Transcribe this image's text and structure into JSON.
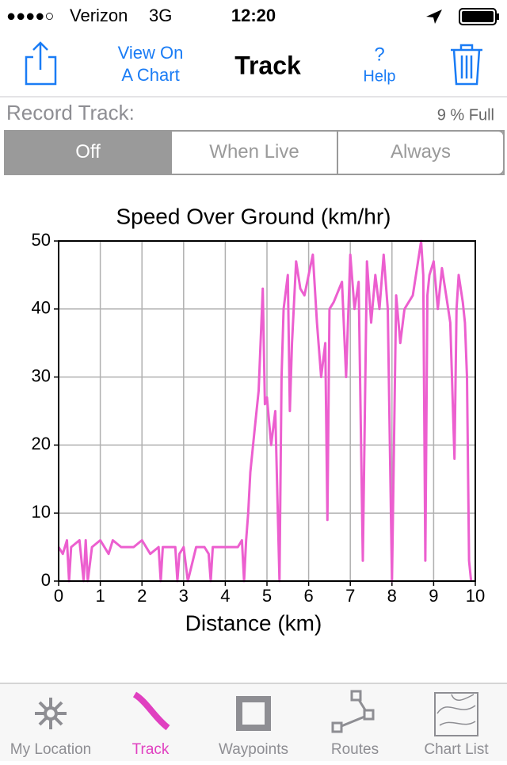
{
  "status_bar": {
    "signal": "●●●●○",
    "carrier": "Verizon",
    "network": "3G",
    "time": "12:20"
  },
  "nav_bar": {
    "left_button": [
      "View On",
      "A Chart"
    ],
    "title": "Track",
    "help": [
      "?",
      "Help"
    ]
  },
  "record_track": {
    "label": "Record Track:",
    "usage": "9 % Full",
    "options": [
      "Off",
      "When Live",
      "Always"
    ],
    "selected": 0
  },
  "chart_data": {
    "type": "line",
    "title": "Speed Over Ground (km/hr)",
    "x_label": "Distance (km)",
    "x": [
      0,
      0.1,
      0.2,
      0.25,
      0.3,
      0.5,
      0.6,
      0.65,
      0.7,
      0.8,
      1.0,
      1.2,
      1.3,
      1.5,
      1.8,
      2.0,
      2.2,
      2.4,
      2.45,
      2.5,
      2.8,
      2.85,
      2.9,
      3.0,
      3.1,
      3.3,
      3.5,
      3.6,
      3.65,
      3.7,
      4.0,
      4.3,
      4.4,
      4.45,
      4.5,
      4.55,
      4.6,
      4.7,
      4.8,
      4.9,
      4.95,
      5.0,
      5.1,
      5.2,
      5.3,
      5.35,
      5.4,
      5.5,
      5.55,
      5.6,
      5.7,
      5.8,
      5.9,
      6.0,
      6.1,
      6.2,
      6.3,
      6.4,
      6.45,
      6.5,
      6.6,
      6.8,
      6.9,
      7.0,
      7.1,
      7.2,
      7.3,
      7.4,
      7.5,
      7.6,
      7.7,
      7.8,
      7.9,
      8.0,
      8.1,
      8.2,
      8.3,
      8.5,
      8.6,
      8.7,
      8.75,
      8.8,
      8.85,
      8.9,
      9.0,
      9.1,
      9.2,
      9.3,
      9.4,
      9.5,
      9.55,
      9.6,
      9.7,
      9.75,
      9.8,
      9.85,
      9.9
    ],
    "values": [
      5,
      4,
      6,
      0,
      5,
      6,
      0,
      6,
      0,
      5,
      6,
      4,
      6,
      5,
      5,
      6,
      4,
      5,
      0,
      5,
      5,
      0,
      4,
      5,
      0,
      5,
      5,
      4,
      0,
      5,
      5,
      5,
      6,
      0,
      6,
      10,
      16,
      22,
      28,
      43,
      26,
      27,
      20,
      25,
      0,
      30,
      40,
      45,
      25,
      35,
      47,
      43,
      42,
      45,
      48,
      38,
      30,
      35,
      9,
      40,
      41,
      44,
      30,
      48,
      40,
      44,
      3,
      47,
      38,
      45,
      40,
      48,
      40,
      0,
      42,
      35,
      40,
      42,
      46,
      50,
      45,
      3,
      42,
      45,
      47,
      40,
      46,
      42,
      38,
      18,
      40,
      45,
      41,
      38,
      30,
      3,
      0
    ],
    "color": "#ec5fcf",
    "xlim": [
      0,
      10
    ],
    "xticks": [
      0,
      1,
      2,
      3,
      4,
      5,
      6,
      7,
      8,
      9,
      10
    ],
    "ylim": [
      0,
      50
    ],
    "yticks": [
      0,
      10,
      20,
      30,
      40,
      50
    ],
    "grid": true
  },
  "tab_bar": {
    "items": [
      "My Location",
      "Track",
      "Waypoints",
      "Routes",
      "Chart List"
    ],
    "selected": 1
  }
}
